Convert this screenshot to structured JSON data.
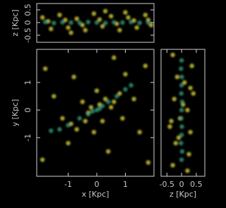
{
  "chart_data": [
    {
      "type": "scatter",
      "xlim": [
        -2.1,
        2.0
      ],
      "ylim": [
        -0.78,
        0.75
      ],
      "yticks": [
        -0.5,
        0,
        0.5
      ],
      "ylabel": "z [Kpc]",
      "series": [
        {
          "color": "#d8cf3a",
          "x": [
            -1.9,
            -1.6,
            -1.3,
            -1.0,
            -0.7,
            -0.4,
            -0.1,
            0.2,
            0.5,
            0.8,
            1.1,
            1.4,
            1.7,
            1.9,
            -1.7,
            -1.1,
            -0.5,
            0.1,
            0.7,
            1.3,
            1.8,
            -0.9,
            0.3,
            1.0
          ],
          "y": [
            0.2,
            -0.25,
            0.3,
            -0.2,
            0.15,
            -0.3,
            0.35,
            -0.15,
            0.25,
            -0.3,
            0.2,
            -0.2,
            0.3,
            -0.1,
            0.05,
            0.1,
            -0.1,
            0.12,
            -0.05,
            0.08,
            0.1,
            -0.4,
            0.45,
            0.4
          ]
        },
        {
          "color": "#2f9a7a",
          "x": [
            -1.8,
            -1.5,
            -1.2,
            -0.9,
            -0.6,
            -0.3,
            0,
            0.3,
            0.6,
            0.9,
            1.2,
            1.5,
            1.8
          ],
          "y": [
            0.02,
            -0.02,
            0.01,
            0,
            -0.01,
            0.02,
            0,
            -0.02,
            0.01,
            0,
            0.02,
            -0.01,
            0
          ]
        }
      ]
    },
    {
      "type": "scatter",
      "xlim": [
        -2.1,
        2.0
      ],
      "ylim": [
        -2.4,
        2.2
      ],
      "xticks": [
        -1,
        0,
        1
      ],
      "yticks": [
        -1,
        0,
        1
      ],
      "xlabel": "x [Kpc]",
      "ylabel": "y [Kpc]",
      "series": [
        {
          "color": "#d8cf3a",
          "x": [
            -0.4,
            0.3,
            -0.2,
            0.5,
            -0.7,
            0.8,
            -1.2,
            1.3,
            -0.5,
            0.2,
            -1.5,
            1.5,
            -1.8,
            1.7,
            0.4,
            -0.8,
            0.9,
            -0.1,
            0.0,
            -1.0,
            1.0,
            -1.9,
            1.8,
            0.6,
            0.1,
            -0.3,
            0.6,
            -0.9
          ],
          "y": [
            -0.4,
            0.4,
            0.1,
            0.1,
            -0.7,
            0.6,
            -0.3,
            0.4,
            0.3,
            -0.4,
            0.5,
            -0.8,
            1.5,
            1.6,
            -1.5,
            1.2,
            -0.3,
            -0.8,
            0.7,
            -1.2,
            1.3,
            -1.8,
            -1.9,
            1.9,
            0.2,
            -0.1,
            0.3,
            -0.5
          ]
        },
        {
          "color": "#2f9a7a",
          "x": [
            -1.6,
            -1.3,
            -1.0,
            -0.6,
            -0.3,
            0,
            0.2,
            0.4,
            0.7,
            1.0,
            1.2,
            0.1,
            -0.15
          ],
          "y": [
            -0.75,
            -0.7,
            -0.55,
            -0.3,
            -0.15,
            0,
            0.15,
            0.3,
            0.5,
            0.75,
            0.9,
            0.05,
            -0.05
          ]
        }
      ]
    },
    {
      "type": "scatter",
      "xlim": [
        -0.7,
        0.79
      ],
      "ylim": [
        -2.4,
        2.2
      ],
      "xticks": [
        -0.5,
        0,
        0.5
      ],
      "xlabel": "z [Kpc]",
      "series": [
        {
          "color": "#d8cf3a",
          "x": [
            -0.3,
            0.25,
            -0.2,
            0.3,
            -0.35,
            0.2,
            -0.25,
            0.3,
            -0.15,
            0.35,
            -0.3,
            0.2,
            0.05,
            -0.05,
            0.1,
            -0.1,
            0.4,
            -0.4
          ],
          "y": [
            -2.0,
            -1.6,
            -1.2,
            -0.8,
            -0.4,
            0,
            0.4,
            0.8,
            1.2,
            1.6,
            2.0,
            -2.2,
            0.2,
            -0.3,
            1.0,
            -1.0,
            0.6,
            -0.6
          ]
        },
        {
          "color": "#2f9a7a",
          "x": [
            0,
            0.02,
            -0.02,
            0,
            0.01,
            -0.01,
            0,
            0.02,
            -0.01,
            0,
            0.01,
            -0.02,
            0
          ],
          "y": [
            -1.8,
            -1.5,
            -1.2,
            -0.9,
            -0.6,
            -0.3,
            0,
            0.3,
            0.6,
            0.9,
            1.2,
            1.5,
            1.8
          ]
        }
      ]
    }
  ]
}
